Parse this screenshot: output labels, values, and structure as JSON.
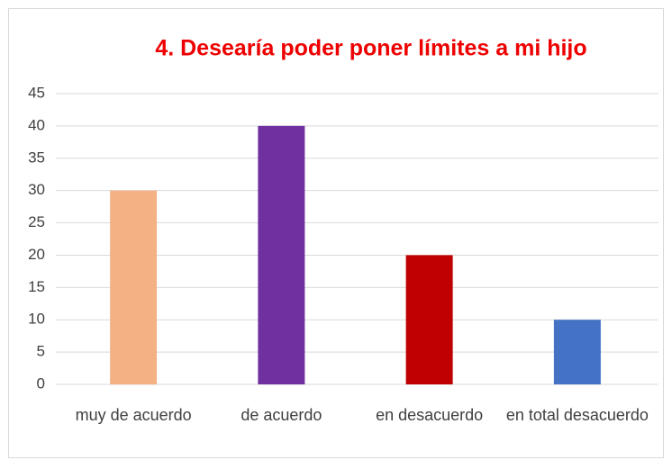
{
  "chart_data": {
    "type": "bar",
    "title": "4. Desearía poder poner límites a mi hijo",
    "categories": [
      "muy de acuerdo",
      "de acuerdo",
      "en desacuerdo",
      "en total desacuerdo"
    ],
    "values": [
      30,
      40,
      20,
      10
    ],
    "colors": [
      "#f4b183",
      "#7030a0",
      "#c00000",
      "#4472c4"
    ],
    "ylim": [
      0,
      45
    ],
    "yticks": [
      0,
      5,
      10,
      15,
      20,
      25,
      30,
      35,
      40,
      45
    ],
    "grid": true
  }
}
